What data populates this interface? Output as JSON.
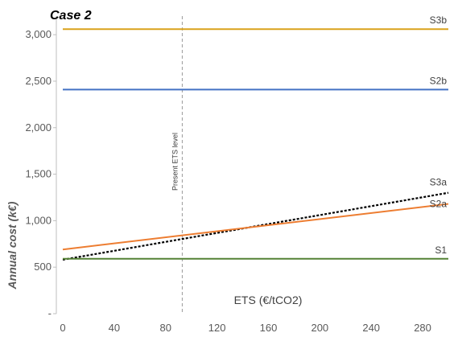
{
  "chart_data": {
    "type": "line",
    "title": "Case 2",
    "xlabel": "ETS (€/tCO2)",
    "ylabel": "Annual cost  (k€)",
    "xlim": [
      0,
      300
    ],
    "ylim": [
      0,
      3200
    ],
    "x_ticks": [
      0,
      40,
      80,
      120,
      160,
      200,
      240,
      280
    ],
    "x_tick_labels": [
      "0",
      "40",
      "80",
      "120",
      "160",
      "200",
      "240",
      "280"
    ],
    "y_ticks": [
      0,
      500,
      1000,
      1500,
      2000,
      2500,
      3000
    ],
    "y_tick_labels": [
      "-",
      "500",
      "1,000",
      "1,500",
      "2,000",
      "2,500",
      "3,000"
    ],
    "grid": false,
    "legend": "inline labels at right end of lines",
    "series": [
      {
        "name": "S3b",
        "color": "#D9A21B",
        "dashed": false,
        "x": [
          0,
          300
        ],
        "y": [
          3060,
          3060
        ]
      },
      {
        "name": "S2b",
        "color": "#4472C4",
        "dashed": false,
        "x": [
          0,
          300
        ],
        "y": [
          2410,
          2410
        ]
      },
      {
        "name": "S3a",
        "color": "#000000",
        "dashed": true,
        "x": [
          0,
          300
        ],
        "y": [
          580,
          1300
        ]
      },
      {
        "name": "S2a",
        "color": "#ED7D31",
        "dashed": false,
        "x": [
          0,
          300
        ],
        "y": [
          690,
          1180
        ]
      },
      {
        "name": "S1",
        "color": "#548235",
        "dashed": false,
        "x": [
          0,
          300
        ],
        "y": [
          590,
          590
        ]
      }
    ],
    "annotations": [
      {
        "type": "vline",
        "x": 93,
        "text": "Present ETS level",
        "color": "#A6A6A6",
        "dashed": true
      }
    ]
  }
}
